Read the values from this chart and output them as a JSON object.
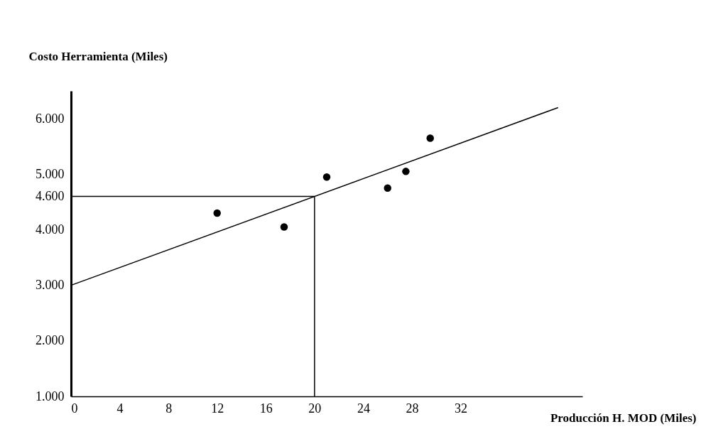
{
  "chart_data": {
    "type": "scatter",
    "xlabel": "Producción H. MOD (Miles)",
    "ylabel": "Costo Herramienta (Miles)",
    "series": [
      {
        "marker": "circle",
        "color": "#000000",
        "x": [
          12,
          17.5,
          21,
          26,
          27.5,
          29.5
        ],
        "values": [
          4300,
          4050,
          4950,
          4750,
          5050,
          5650
        ]
      },
      {
        "type": "line",
        "marker": "none",
        "color": "#000000",
        "x": [
          0,
          40
        ],
        "values": [
          3000,
          6200
        ]
      }
    ],
    "xlim": [
      0,
      42
    ],
    "ylim": [
      1000,
      6500
    ],
    "xticks": [
      0,
      4,
      8,
      12,
      16,
      20,
      24,
      28,
      32
    ],
    "yticks": [
      {
        "value": 1000,
        "label": "1.000"
      },
      {
        "value": 2000,
        "label": "2.000"
      },
      {
        "value": 3000,
        "label": "3.000"
      },
      {
        "value": 4000,
        "label": "4.000"
      },
      {
        "value": 4600,
        "label": "4.600"
      },
      {
        "value": 5000,
        "label": "5.000"
      },
      {
        "value": 6000,
        "label": "6.000"
      }
    ],
    "ref_lines": [
      {
        "axis": "x",
        "value": 20,
        "color": "#000000"
      },
      {
        "axis": "y",
        "value": 4600,
        "color": "#000000"
      }
    ],
    "grid": false,
    "line_style": "solid"
  }
}
